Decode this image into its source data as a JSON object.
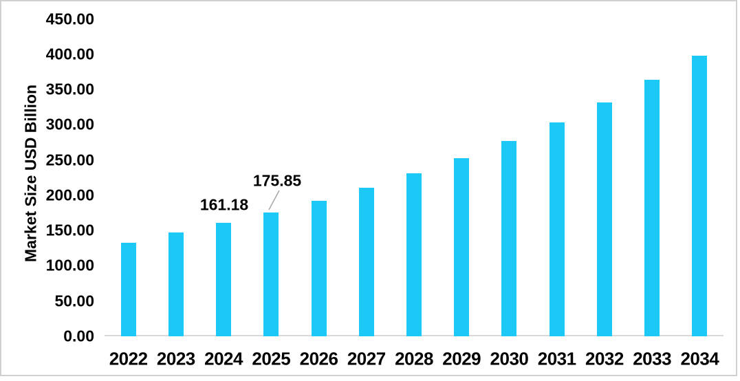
{
  "chart_data": {
    "type": "bar",
    "title": "",
    "xlabel": "",
    "ylabel": "Market Size USD Billion",
    "categories": [
      "2022",
      "2023",
      "2024",
      "2025",
      "2026",
      "2027",
      "2028",
      "2029",
      "2030",
      "2031",
      "2032",
      "2033",
      "2034"
    ],
    "values": [
      133.0,
      146.9,
      161.18,
      175.85,
      192.56,
      210.85,
      230.88,
      252.81,
      276.83,
      303.13,
      331.93,
      363.46,
      397.99
    ],
    "ylim": [
      0,
      450
    ],
    "ytick_labels": [
      "0.00",
      "50.00",
      "100.00",
      "150.00",
      "200.00",
      "250.00",
      "300.00",
      "350.00",
      "400.00",
      "450.00"
    ],
    "grid": false,
    "legend_position": "none",
    "bar_color": "#1cc8f5",
    "axis_line_color": "#d9d9d9",
    "leader_line_color": "#a6a6a6",
    "data_labels": [
      {
        "category": "2024",
        "text": "161.18",
        "has_leader_line": false
      },
      {
        "category": "2025",
        "text": "175.85",
        "has_leader_line": true
      }
    ]
  }
}
